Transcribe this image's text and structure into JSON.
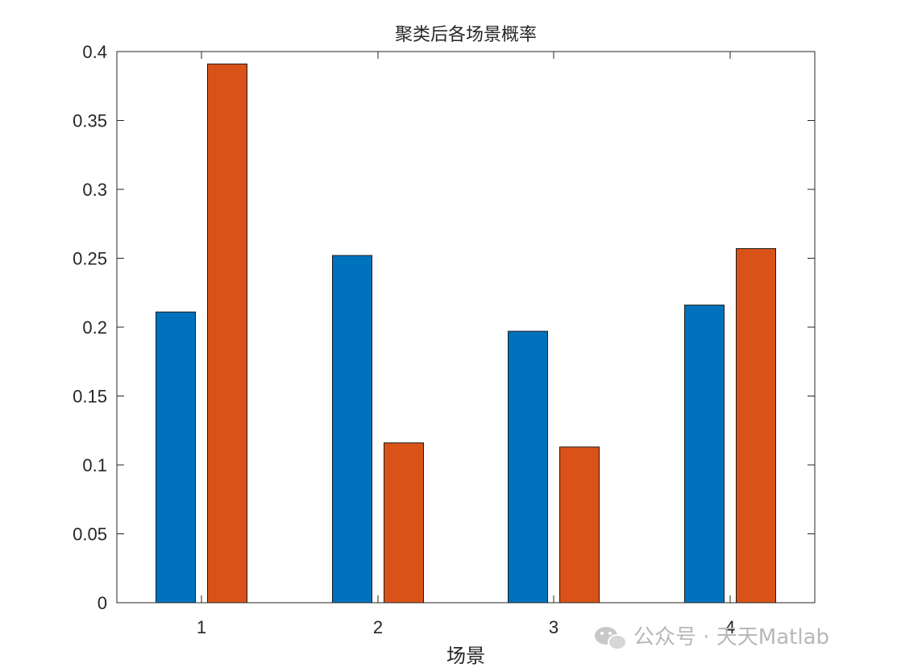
{
  "chart_data": {
    "type": "bar",
    "title": "聚类后各场景概率",
    "xlabel": "场景",
    "ylabel": "",
    "categories": [
      "1",
      "2",
      "3",
      "4"
    ],
    "series": [
      {
        "values": [
          0.211,
          0.252,
          0.197,
          0.216
        ],
        "color": "#0072BD"
      },
      {
        "values": [
          0.391,
          0.116,
          0.113,
          0.257
        ],
        "color": "#D95319"
      }
    ],
    "ylim": [
      0,
      0.4
    ],
    "yticks": [
      0,
      0.05,
      0.1,
      0.15,
      0.2,
      0.25,
      0.3,
      0.35,
      0.4
    ],
    "ytick_labels": [
      "0",
      "0.05",
      "0.1",
      "0.15",
      "0.2",
      "0.25",
      "0.3",
      "0.35",
      "0.4"
    ],
    "grid": false,
    "legend": "none"
  },
  "watermark": {
    "text": "公众号 · 天天Matlab",
    "icon": "wechat-icon"
  }
}
